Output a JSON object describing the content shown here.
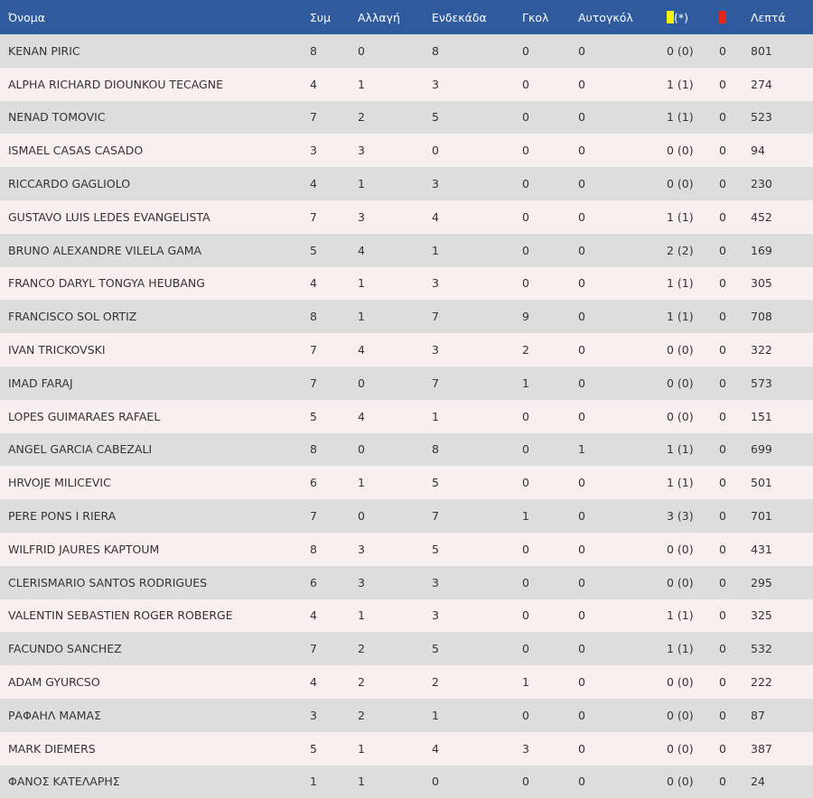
{
  "colors": {
    "header_bg": "#2f5a9e",
    "header_text": "#ffffff",
    "row_odd": "#dddddd",
    "row_even": "#f8eff0",
    "yellow_card": "#f2f20d",
    "red_card": "#e0261d"
  },
  "headers": {
    "name": "Όνομα",
    "apps": "Συμ",
    "sub": "Αλλαγή",
    "starter": "Ενδεκάδα",
    "goals": "Γκολ",
    "own_goals": "Αυτογκόλ",
    "yellow_suffix": "(*)",
    "yellow_icon": "yellow-card-icon",
    "red_icon": "red-card-icon",
    "minutes": "Λεπτά"
  },
  "rows": [
    {
      "name": "KENAN PIRIC",
      "apps": "8",
      "sub": "0",
      "starter": "8",
      "goals": "0",
      "own_goals": "0",
      "yellow": "0 (0)",
      "red": "0",
      "minutes": "801"
    },
    {
      "name": "ALPHA RICHARD DIOUNKOU TECAGNE",
      "apps": "4",
      "sub": "1",
      "starter": "3",
      "goals": "0",
      "own_goals": "0",
      "yellow": "1 (1)",
      "red": "0",
      "minutes": "274"
    },
    {
      "name": "NENAD TOMOVIC",
      "apps": "7",
      "sub": "2",
      "starter": "5",
      "goals": "0",
      "own_goals": "0",
      "yellow": "1 (1)",
      "red": "0",
      "minutes": "523"
    },
    {
      "name": "ISMAEL CASAS CASADO",
      "apps": "3",
      "sub": "3",
      "starter": "0",
      "goals": "0",
      "own_goals": "0",
      "yellow": "0 (0)",
      "red": "0",
      "minutes": "94"
    },
    {
      "name": "RICCARDO GAGLIOLO",
      "apps": "4",
      "sub": "1",
      "starter": "3",
      "goals": "0",
      "own_goals": "0",
      "yellow": "0 (0)",
      "red": "0",
      "minutes": "230"
    },
    {
      "name": "GUSTAVO LUIS LEDES EVANGELISTA",
      "apps": "7",
      "sub": "3",
      "starter": "4",
      "goals": "0",
      "own_goals": "0",
      "yellow": "1 (1)",
      "red": "0",
      "minutes": "452"
    },
    {
      "name": "BRUNO ALEXANDRE VILELA GAMA",
      "apps": "5",
      "sub": "4",
      "starter": "1",
      "goals": "0",
      "own_goals": "0",
      "yellow": "2 (2)",
      "red": "0",
      "minutes": "169"
    },
    {
      "name": "FRANCO DARYL TONGYA HEUBANG",
      "apps": "4",
      "sub": "1",
      "starter": "3",
      "goals": "0",
      "own_goals": "0",
      "yellow": "1 (1)",
      "red": "0",
      "minutes": "305"
    },
    {
      "name": "FRANCISCO SOL ORTIZ",
      "apps": "8",
      "sub": "1",
      "starter": "7",
      "goals": "9",
      "own_goals": "0",
      "yellow": "1 (1)",
      "red": "0",
      "minutes": "708"
    },
    {
      "name": "IVAN TRICKOVSKI",
      "apps": "7",
      "sub": "4",
      "starter": "3",
      "goals": "2",
      "own_goals": "0",
      "yellow": "0 (0)",
      "red": "0",
      "minutes": "322"
    },
    {
      "name": "IMAD FARAJ",
      "apps": "7",
      "sub": "0",
      "starter": "7",
      "goals": "1",
      "own_goals": "0",
      "yellow": "0 (0)",
      "red": "0",
      "minutes": "573"
    },
    {
      "name": "LOPES GUIMARAES RAFAEL",
      "apps": "5",
      "sub": "4",
      "starter": "1",
      "goals": "0",
      "own_goals": "0",
      "yellow": "0 (0)",
      "red": "0",
      "minutes": "151"
    },
    {
      "name": "ANGEL GARCIA CABEZALI",
      "apps": "8",
      "sub": "0",
      "starter": "8",
      "goals": "0",
      "own_goals": "1",
      "yellow": "1 (1)",
      "red": "0",
      "minutes": "699"
    },
    {
      "name": "HRVOJE MILICEVIC",
      "apps": "6",
      "sub": "1",
      "starter": "5",
      "goals": "0",
      "own_goals": "0",
      "yellow": "1 (1)",
      "red": "0",
      "minutes": "501"
    },
    {
      "name": "PERE PONS I RIERA",
      "apps": "7",
      "sub": "0",
      "starter": "7",
      "goals": "1",
      "own_goals": "0",
      "yellow": "3 (3)",
      "red": "0",
      "minutes": "701"
    },
    {
      "name": "WILFRID JAURES KAPTOUM",
      "apps": "8",
      "sub": "3",
      "starter": "5",
      "goals": "0",
      "own_goals": "0",
      "yellow": "0 (0)",
      "red": "0",
      "minutes": "431"
    },
    {
      "name": "CLERISMARIO SANTOS RODRIGUES",
      "apps": "6",
      "sub": "3",
      "starter": "3",
      "goals": "0",
      "own_goals": "0",
      "yellow": "0 (0)",
      "red": "0",
      "minutes": "295"
    },
    {
      "name": "VALENTIN SEBASTIEN ROGER ROBERGE",
      "apps": "4",
      "sub": "1",
      "starter": "3",
      "goals": "0",
      "own_goals": "0",
      "yellow": "1 (1)",
      "red": "0",
      "minutes": "325"
    },
    {
      "name": "FACUNDO SANCHEZ",
      "apps": "7",
      "sub": "2",
      "starter": "5",
      "goals": "0",
      "own_goals": "0",
      "yellow": "1 (1)",
      "red": "0",
      "minutes": "532"
    },
    {
      "name": "ADAM GYURCSO",
      "apps": "4",
      "sub": "2",
      "starter": "2",
      "goals": "1",
      "own_goals": "0",
      "yellow": "0 (0)",
      "red": "0",
      "minutes": "222"
    },
    {
      "name": "ΡΑΦΑΗΛ ΜΑΜΑΣ",
      "apps": "3",
      "sub": "2",
      "starter": "1",
      "goals": "0",
      "own_goals": "0",
      "yellow": "0 (0)",
      "red": "0",
      "minutes": "87"
    },
    {
      "name": "MARK DIEMERS",
      "apps": "5",
      "sub": "1",
      "starter": "4",
      "goals": "3",
      "own_goals": "0",
      "yellow": "0 (0)",
      "red": "0",
      "minutes": "387"
    },
    {
      "name": "ΦΑΝΟΣ ΚΑΤΕΛΑΡΗΣ",
      "apps": "1",
      "sub": "1",
      "starter": "0",
      "goals": "0",
      "own_goals": "0",
      "yellow": "0 (0)",
      "red": "0",
      "minutes": "24"
    }
  ]
}
